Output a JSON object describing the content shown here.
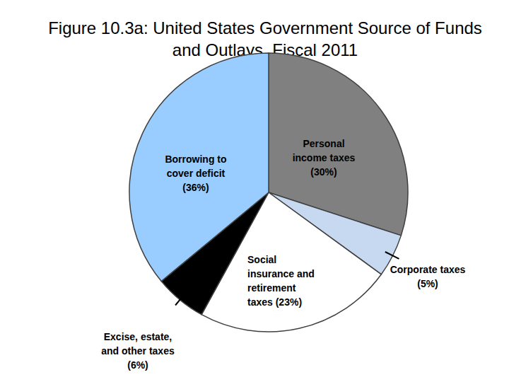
{
  "chart_data": {
    "type": "pie",
    "title": "Figure 10.3a: United States Government Source of Funds and Outlays, Fiscal 2011",
    "categories": [
      "Personal income taxes",
      "Corporate taxes",
      "Social insurance and retirement taxes",
      "Excise, estate, and other taxes",
      "Borrowing to cover deficit"
    ],
    "values": [
      30,
      5,
      23,
      6,
      36
    ],
    "value_labels": [
      "(30%)",
      "(5%)",
      "(23%)",
      "(6%)",
      "(36%)"
    ],
    "colors": [
      "#808080",
      "#c6d9f1",
      "#ffffff",
      "#000000",
      "#99ccff"
    ],
    "data_labels": true
  }
}
